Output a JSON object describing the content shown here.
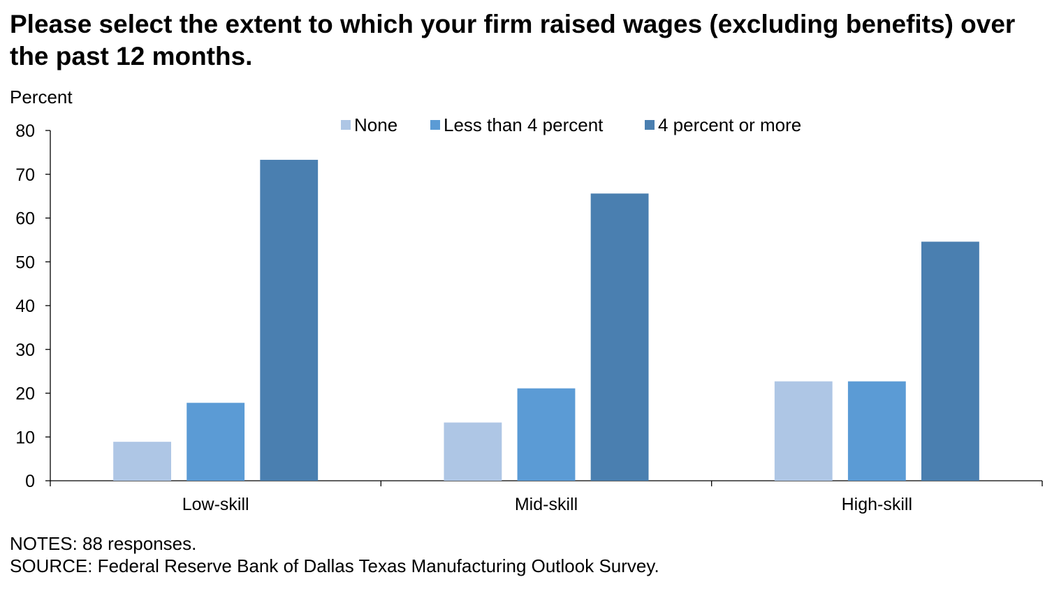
{
  "chart_data": {
    "type": "bar",
    "title": "Please select the extent to which your firm raised wages (excluding benefits) over the past 12 months.",
    "ylabel": "Percent",
    "xlabel": "",
    "ylim": [
      0,
      80
    ],
    "yticks": [
      0,
      10,
      20,
      30,
      40,
      50,
      60,
      70,
      80
    ],
    "categories": [
      "Low-skill",
      "Mid-skill",
      "High-skill"
    ],
    "series": [
      {
        "name": "None",
        "color": "#aec6e5",
        "values": [
          8.9,
          13.3,
          22.7
        ]
      },
      {
        "name": "Less than 4 percent",
        "color": "#5b9bd5",
        "values": [
          17.8,
          21.1,
          22.7
        ]
      },
      {
        "name": "4 percent or more",
        "color": "#4a7fb0",
        "values": [
          73.3,
          65.6,
          54.6
        ]
      }
    ],
    "legend": "top-center",
    "grid": false
  },
  "notes": "NOTES: 88 responses.",
  "source": "SOURCE: Federal Reserve Bank of Dallas Texas Manufacturing Outlook Survey."
}
